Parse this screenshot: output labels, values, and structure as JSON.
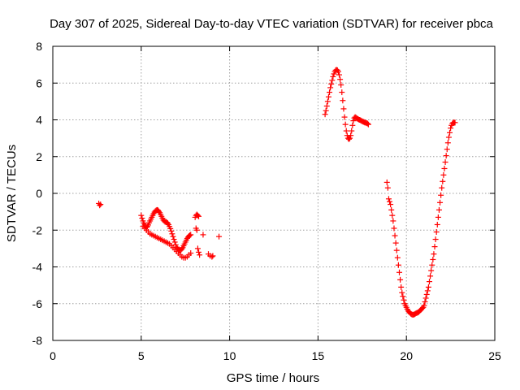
{
  "chart_data": {
    "type": "scatter",
    "title": "Day 307 of 2025, Sidereal Day-to-day VTEC variation (SDTVAR) for receiver pbca",
    "xlabel": "GPS time / hours",
    "ylabel": "SDTVAR / TECUs",
    "xlim": [
      0,
      25
    ],
    "ylim": [
      -8,
      8
    ],
    "xticks": [
      0,
      5,
      10,
      15,
      20,
      25
    ],
    "yticks": [
      -8,
      -6,
      -4,
      -2,
      0,
      2,
      4,
      6,
      8
    ],
    "grid": true,
    "marker": "+",
    "marker_color": "#ff0000",
    "series": [
      {
        "segments": [
          {
            "x": [
              2.6,
              2.65,
              2.7
            ],
            "y": [
              -0.55,
              -0.65,
              -0.6
            ]
          },
          {
            "x": [
              5.0,
              5.05,
              5.1,
              5.15,
              5.2,
              5.25,
              5.3,
              5.35,
              5.4,
              5.45,
              5.5,
              5.55,
              5.6,
              5.65,
              5.7,
              5.75,
              5.8,
              5.85,
              5.9,
              5.95,
              6.0,
              6.05,
              6.1,
              6.15,
              6.2,
              6.25,
              6.3,
              6.35,
              6.4,
              6.45,
              6.5,
              6.55,
              6.6,
              6.65,
              6.7,
              6.75,
              6.8,
              6.85,
              6.9,
              6.95,
              7.0,
              7.05,
              7.1,
              7.15,
              7.2,
              7.25,
              7.3,
              7.35,
              7.4,
              7.45,
              7.5,
              7.55,
              7.6,
              7.65,
              7.7,
              7.75,
              7.8
            ],
            "y": [
              -1.2,
              -1.35,
              -1.5,
              -1.62,
              -1.72,
              -1.8,
              -1.85,
              -1.8,
              -1.72,
              -1.6,
              -1.5,
              -1.4,
              -1.3,
              -1.2,
              -1.1,
              -1.02,
              -0.96,
              -0.92,
              -0.9,
              -0.92,
              -0.98,
              -1.05,
              -1.15,
              -1.25,
              -1.35,
              -1.45,
              -1.5,
              -1.55,
              -1.55,
              -1.58,
              -1.62,
              -1.7,
              -1.8,
              -1.92,
              -2.05,
              -2.2,
              -2.35,
              -2.5,
              -2.65,
              -2.8,
              -2.92,
              -3.0,
              -3.05,
              -3.08,
              -3.1,
              -3.08,
              -3.02,
              -2.95,
              -2.85,
              -2.75,
              -2.65,
              -2.55,
              -2.45,
              -2.38,
              -2.32,
              -2.28,
              -2.25
            ]
          },
          {
            "x": [
              5.1,
              5.2,
              5.3,
              5.4,
              5.5,
              5.6,
              5.7,
              5.8,
              5.9,
              6.0,
              6.1,
              6.2,
              6.3,
              6.4,
              6.5,
              6.6,
              6.7,
              6.8,
              6.9,
              7.0,
              7.1,
              7.2,
              7.3,
              7.4,
              7.5,
              7.6,
              7.7,
              7.8
            ],
            "y": [
              -1.8,
              -1.9,
              -2.0,
              -2.1,
              -2.2,
              -2.25,
              -2.3,
              -2.35,
              -2.4,
              -2.45,
              -2.5,
              -2.55,
              -2.6,
              -2.65,
              -2.7,
              -2.75,
              -2.85,
              -2.95,
              -3.05,
              -3.15,
              -3.25,
              -3.35,
              -3.45,
              -3.5,
              -3.5,
              -3.45,
              -3.35,
              -3.25
            ]
          },
          {
            "x": [
              8.05,
              8.1,
              8.15,
              8.2,
              8.25,
              8.1,
              8.15,
              8.2,
              8.25,
              8.3,
              8.5,
              8.8,
              8.9,
              9.0,
              9.05,
              9.4
            ],
            "y": [
              -1.3,
              -1.2,
              -1.15,
              -1.2,
              -1.25,
              -1.9,
              -2.0,
              -3.0,
              -3.2,
              -3.35,
              -2.25,
              -3.3,
              -3.4,
              -3.45,
              -3.4,
              -2.35
            ]
          },
          {
            "x": [
              15.4,
              15.45,
              15.5,
              15.55,
              15.6,
              15.65,
              15.7,
              15.75,
              15.8,
              15.85,
              15.9,
              15.95,
              16.0,
              16.05,
              16.1,
              16.15,
              16.2,
              16.25,
              16.3,
              16.35,
              16.4,
              16.45,
              16.5,
              16.55,
              16.6,
              16.65,
              16.7,
              16.75,
              16.8,
              16.85,
              16.9,
              16.95,
              17.0,
              17.05,
              17.1,
              17.15,
              17.2,
              17.25,
              17.3,
              17.35,
              17.4,
              17.45,
              17.5,
              17.55,
              17.6,
              17.65,
              17.7,
              17.75,
              17.8,
              17.85
            ],
            "y": [
              4.3,
              4.5,
              4.75,
              5.0,
              5.25,
              5.5,
              5.75,
              5.95,
              6.15,
              6.35,
              6.5,
              6.62,
              6.7,
              6.72,
              6.7,
              6.62,
              6.45,
              6.2,
              5.9,
              5.5,
              5.05,
              4.6,
              4.15,
              3.75,
              3.4,
              3.15,
              3.0,
              2.95,
              3.0,
              3.15,
              3.4,
              3.7,
              3.95,
              4.1,
              4.15,
              4.12,
              4.08,
              4.05,
              4.02,
              4.0,
              3.98,
              3.95,
              3.92,
              3.9,
              3.88,
              3.85,
              3.85,
              3.82,
              3.8,
              3.75
            ]
          },
          {
            "x": [
              18.9,
              18.95,
              19.0,
              19.05,
              19.1,
              19.15,
              19.2,
              19.25,
              19.3,
              19.35,
              19.4,
              19.45,
              19.5,
              19.55,
              19.6,
              19.65,
              19.7,
              19.75,
              19.8,
              19.85,
              19.9,
              19.95,
              20.0,
              20.05,
              20.1,
              20.15,
              20.2,
              20.25,
              20.3,
              20.35,
              20.4,
              20.45,
              20.5,
              20.55,
              20.6,
              20.65,
              20.7,
              20.75,
              20.8,
              20.85,
              20.9,
              20.95,
              21.0,
              21.05,
              21.1,
              21.15,
              21.2,
              21.25,
              21.3,
              21.35,
              21.4,
              21.45,
              21.5,
              21.55,
              21.6,
              21.65,
              21.7,
              21.75,
              21.8,
              21.85,
              21.9,
              21.95,
              22.0,
              22.05,
              22.1,
              22.15,
              22.2,
              22.25,
              22.3,
              22.35,
              22.4,
              22.45,
              22.5,
              22.55,
              22.6,
              22.65,
              22.7,
              22.75
            ],
            "y": [
              0.6,
              0.3,
              -0.3,
              -0.45,
              -0.6,
              -0.9,
              -1.2,
              -1.5,
              -1.9,
              -2.3,
              -2.7,
              -3.1,
              -3.5,
              -3.9,
              -4.3,
              -4.7,
              -5.1,
              -5.4,
              -5.6,
              -5.8,
              -6.0,
              -6.1,
              -6.2,
              -6.3,
              -6.4,
              -6.45,
              -6.5,
              -6.55,
              -6.58,
              -6.6,
              -6.6,
              -6.58,
              -6.55,
              -6.52,
              -6.5,
              -6.48,
              -6.45,
              -6.4,
              -6.35,
              -6.3,
              -6.25,
              -6.2,
              -6.1,
              -5.9,
              -5.7,
              -5.5,
              -5.3,
              -5.1,
              -4.8,
              -4.5,
              -4.2,
              -3.9,
              -3.6,
              -3.3,
              -2.9,
              -2.5,
              -2.1,
              -1.7,
              -1.3,
              -0.9,
              -0.5,
              -0.1,
              0.3,
              0.65,
              1.0,
              1.35,
              1.7,
              2.05,
              2.4,
              2.75,
              3.05,
              3.3,
              3.55,
              3.7,
              3.8,
              3.85,
              3.85,
              3.85
            ]
          }
        ]
      }
    ]
  }
}
